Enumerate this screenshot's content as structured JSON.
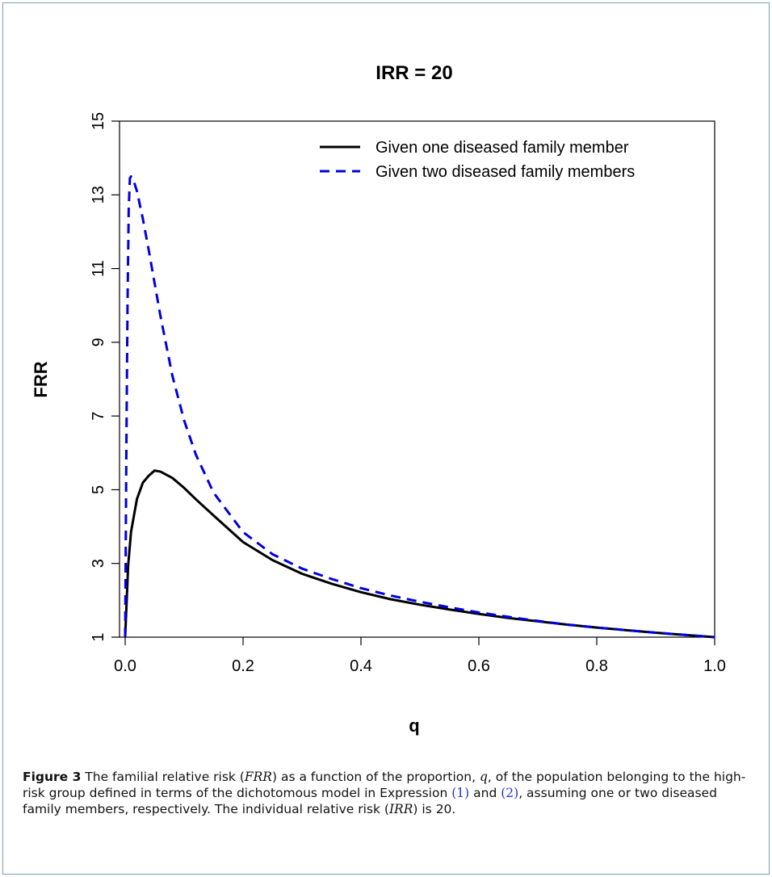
{
  "chart_data": {
    "type": "line",
    "title": "IRR = 20",
    "xlabel": "q",
    "ylabel": "FRR",
    "xlim": [
      0,
      1
    ],
    "ylim": [
      1,
      15
    ],
    "x_ticks": [
      "0.0",
      "0.2",
      "0.4",
      "0.6",
      "0.8",
      "1.0"
    ],
    "y_ticks": [
      "1",
      "3",
      "5",
      "7",
      "9",
      "11",
      "13",
      "15"
    ],
    "grid": false,
    "legend_position": "top-right",
    "series": [
      {
        "name": "Given one diseased family member",
        "style": "solid",
        "color": "#000000",
        "x": [
          0,
          0.005,
          0.01,
          0.02,
          0.03,
          0.04,
          0.05,
          0.06,
          0.08,
          0.1,
          0.12,
          0.15,
          0.2,
          0.25,
          0.3,
          0.35,
          0.4,
          0.45,
          0.5,
          0.55,
          0.6,
          0.65,
          0.7,
          0.75,
          0.8,
          0.85,
          0.9,
          0.95,
          1.0
        ],
        "values": [
          1.0,
          2.93,
          3.86,
          4.75,
          5.19,
          5.38,
          5.52,
          5.49,
          5.32,
          5.05,
          4.74,
          4.3,
          3.58,
          3.09,
          2.72,
          2.45,
          2.22,
          2.03,
          1.88,
          1.75,
          1.63,
          1.52,
          1.43,
          1.34,
          1.26,
          1.19,
          1.12,
          1.06,
          1.0
        ]
      },
      {
        "name": "Given two diseased family members",
        "style": "dashed",
        "color": "#0000dd",
        "x": [
          0,
          0.002,
          0.004,
          0.006,
          0.008,
          0.01,
          0.012,
          0.015,
          0.02,
          0.03,
          0.04,
          0.05,
          0.06,
          0.08,
          0.1,
          0.12,
          0.15,
          0.2,
          0.25,
          0.3,
          0.35,
          0.4,
          0.45,
          0.5,
          0.55,
          0.6,
          0.65,
          0.7,
          0.75,
          0.8,
          0.85,
          0.9,
          0.95,
          1.0
        ],
        "values": [
          1.0,
          6.0,
          10.0,
          12.6,
          13.45,
          13.5,
          13.45,
          13.35,
          13.1,
          12.35,
          11.5,
          10.6,
          9.7,
          8.1,
          6.88,
          5.95,
          4.92,
          3.85,
          3.25,
          2.86,
          2.58,
          2.33,
          2.13,
          1.96,
          1.81,
          1.67,
          1.55,
          1.44,
          1.34,
          1.26,
          1.19,
          1.12,
          1.06,
          1.0
        ]
      }
    ]
  },
  "caption": {
    "label": "Figure 3",
    "t1": " The familial relative risk (",
    "m1": "FRR",
    "t2": ") as a function of the proportion, ",
    "m2": "q",
    "t3": ", of the population belonging to the high-risk group defined in terms of the dichotomous model in Expression ",
    "r1": "(1)",
    "t4": " and ",
    "r2": "(2)",
    "t5": ", assuming one or two diseased family members, respectively. The individual relative risk (",
    "m3": "IRR",
    "t6": ") is 20."
  }
}
